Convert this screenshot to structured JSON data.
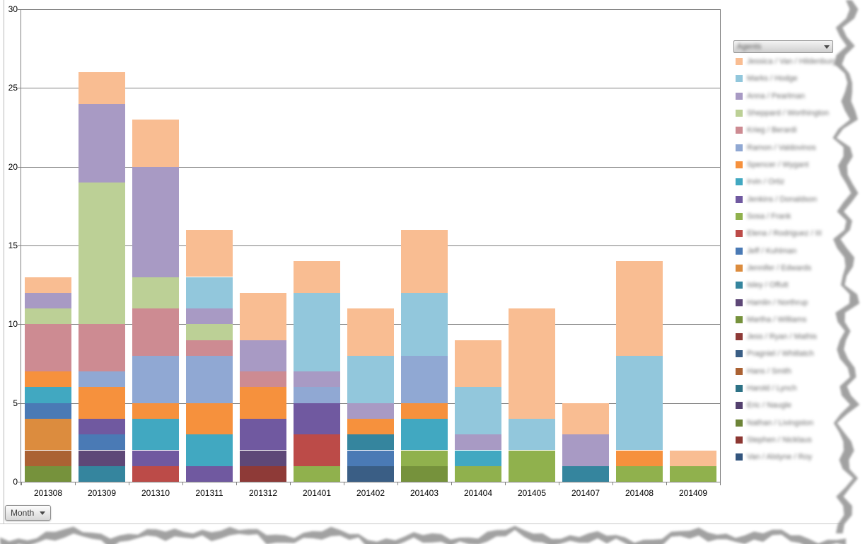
{
  "note": "Legend texts and the legend dropdown caption are blurred/illegible in the source screenshot; their label strings below are shape placeholders only.",
  "y_axis": {
    "ticks": [
      0,
      5,
      10,
      15,
      20,
      25,
      30
    ]
  },
  "controls": {
    "month_button": {
      "label": "Month"
    },
    "legend_dropdown": {
      "label": "Agents",
      "blurred": true
    }
  },
  "chart_data": {
    "type": "bar",
    "stacked": true,
    "title": "",
    "xlabel": "",
    "ylabel": "",
    "ylim": [
      0,
      30
    ],
    "grid": true,
    "gridline_step": 5,
    "legend_position": "right",
    "categories": [
      "201308",
      "201309",
      "201310",
      "201311",
      "201312",
      "201401",
      "201402",
      "201403",
      "201404",
      "201405",
      "201407",
      "201408",
      "201409"
    ],
    "totals": [
      13,
      26,
      23,
      16,
      12,
      14,
      11,
      16,
      9,
      11,
      5,
      14,
      2
    ],
    "palette": {
      "peach": "#F9BD92",
      "ltcyan": "#92C7DC",
      "lavender": "#A89AC4",
      "ltgreen": "#BCD096",
      "salmon": "#CD8B92",
      "periwinkle": "#90A8D3",
      "orange": "#F6913D",
      "teal": "#41A8C1",
      "purple": "#7059A0",
      "green": "#90B14D",
      "red": "#BC4B48",
      "blue": "#4A7AB5",
      "dkorange": "#DC8C3E",
      "dkteal": "#35859E",
      "dkpurple": "#5E4877",
      "olive": "#76923C",
      "dkred": "#8E3A37",
      "dkblue": "#3A5E85",
      "brown": "#AB6233",
      "tealdark2": "#2D7286",
      "purpledark2": "#53406E",
      "olivedark2": "#6D8438",
      "reddark2": "#8C3732",
      "bluedark2": "#33557E"
    },
    "bars": [
      {
        "category": "201308",
        "segments": [
          {
            "c": "olive",
            "v": 1
          },
          {
            "c": "brown",
            "v": 1
          },
          {
            "c": "dkorange",
            "v": 2
          },
          {
            "c": "blue",
            "v": 1
          },
          {
            "c": "teal",
            "v": 1
          },
          {
            "c": "orange",
            "v": 1
          },
          {
            "c": "salmon",
            "v": 3
          },
          {
            "c": "ltgreen",
            "v": 1
          },
          {
            "c": "lavender",
            "v": 1
          },
          {
            "c": "peach",
            "v": 1
          }
        ]
      },
      {
        "category": "201309",
        "segments": [
          {
            "c": "dkteal",
            "v": 1
          },
          {
            "c": "dkpurple",
            "v": 1
          },
          {
            "c": "blue",
            "v": 1
          },
          {
            "c": "purple",
            "v": 1
          },
          {
            "c": "orange",
            "v": 2
          },
          {
            "c": "periwinkle",
            "v": 1
          },
          {
            "c": "salmon",
            "v": 3
          },
          {
            "c": "ltgreen",
            "v": 9
          },
          {
            "c": "lavender",
            "v": 5
          },
          {
            "c": "peach",
            "v": 2
          }
        ]
      },
      {
        "category": "201310",
        "segments": [
          {
            "c": "red",
            "v": 1
          },
          {
            "c": "purple",
            "v": 1
          },
          {
            "c": "teal",
            "v": 2
          },
          {
            "c": "orange",
            "v": 1
          },
          {
            "c": "periwinkle",
            "v": 3
          },
          {
            "c": "salmon",
            "v": 3
          },
          {
            "c": "ltgreen",
            "v": 2
          },
          {
            "c": "lavender",
            "v": 7
          },
          {
            "c": "peach",
            "v": 3
          }
        ]
      },
      {
        "category": "201311",
        "segments": [
          {
            "c": "purple",
            "v": 1
          },
          {
            "c": "teal",
            "v": 2
          },
          {
            "c": "orange",
            "v": 2
          },
          {
            "c": "periwinkle",
            "v": 3
          },
          {
            "c": "salmon",
            "v": 1
          },
          {
            "c": "ltgreen",
            "v": 1
          },
          {
            "c": "lavender",
            "v": 1
          },
          {
            "c": "ltcyan",
            "v": 2
          },
          {
            "c": "peach",
            "v": 3
          }
        ]
      },
      {
        "category": "201312",
        "segments": [
          {
            "c": "dkred",
            "v": 1
          },
          {
            "c": "dkpurple",
            "v": 1
          },
          {
            "c": "purple",
            "v": 2
          },
          {
            "c": "orange",
            "v": 2
          },
          {
            "c": "salmon",
            "v": 1
          },
          {
            "c": "lavender",
            "v": 2
          },
          {
            "c": "peach",
            "v": 3
          }
        ]
      },
      {
        "category": "201401",
        "segments": [
          {
            "c": "green",
            "v": 1
          },
          {
            "c": "red",
            "v": 2
          },
          {
            "c": "purple",
            "v": 2
          },
          {
            "c": "periwinkle",
            "v": 1
          },
          {
            "c": "lavender",
            "v": 1
          },
          {
            "c": "ltcyan",
            "v": 5
          },
          {
            "c": "peach",
            "v": 2
          }
        ]
      },
      {
        "category": "201402",
        "segments": [
          {
            "c": "dkblue",
            "v": 1
          },
          {
            "c": "blue",
            "v": 1
          },
          {
            "c": "dkteal",
            "v": 1
          },
          {
            "c": "orange",
            "v": 1
          },
          {
            "c": "lavender",
            "v": 1
          },
          {
            "c": "ltcyan",
            "v": 3
          },
          {
            "c": "peach",
            "v": 3
          }
        ]
      },
      {
        "category": "201403",
        "segments": [
          {
            "c": "olive",
            "v": 1
          },
          {
            "c": "green",
            "v": 1
          },
          {
            "c": "teal",
            "v": 2
          },
          {
            "c": "orange",
            "v": 1
          },
          {
            "c": "periwinkle",
            "v": 3
          },
          {
            "c": "ltcyan",
            "v": 4
          },
          {
            "c": "peach",
            "v": 4
          }
        ]
      },
      {
        "category": "201404",
        "segments": [
          {
            "c": "green",
            "v": 1
          },
          {
            "c": "teal",
            "v": 1
          },
          {
            "c": "lavender",
            "v": 1
          },
          {
            "c": "ltcyan",
            "v": 3
          },
          {
            "c": "peach",
            "v": 3
          }
        ]
      },
      {
        "category": "201405",
        "segments": [
          {
            "c": "green",
            "v": 2
          },
          {
            "c": "ltcyan",
            "v": 2
          },
          {
            "c": "peach",
            "v": 7
          }
        ]
      },
      {
        "category": "201407",
        "segments": [
          {
            "c": "dkteal",
            "v": 1
          },
          {
            "c": "lavender",
            "v": 2
          },
          {
            "c": "peach",
            "v": 2
          }
        ]
      },
      {
        "category": "201408",
        "segments": [
          {
            "c": "green",
            "v": 1
          },
          {
            "c": "orange",
            "v": 1
          },
          {
            "c": "ltcyan",
            "v": 6
          },
          {
            "c": "peach",
            "v": 6
          }
        ]
      },
      {
        "category": "201409",
        "segments": [
          {
            "c": "green",
            "v": 1
          },
          {
            "c": "peach",
            "v": 1
          }
        ]
      }
    ]
  },
  "legend": {
    "blurred": true,
    "items": [
      {
        "label": "Jessica / Van / Hildenburg",
        "color": "#F9BD92"
      },
      {
        "label": "Marks / Hodge",
        "color": "#92C7DC"
      },
      {
        "label": "Anna / Pearlman",
        "color": "#A89AC4"
      },
      {
        "label": "Sheppard / Worthington",
        "color": "#BCD096"
      },
      {
        "label": "Krieg / Berardi",
        "color": "#CD8B92"
      },
      {
        "label": "Ramon / Valdovinos",
        "color": "#90A8D3"
      },
      {
        "label": "Spencer / Wygant",
        "color": "#F6913D"
      },
      {
        "label": "Irvin / Ortiz",
        "color": "#41A8C1"
      },
      {
        "label": "Jenkins / Donaldson",
        "color": "#7059A0"
      },
      {
        "label": "Sosa / Frank",
        "color": "#90B14D"
      },
      {
        "label": "Elena / Rodriguez / III",
        "color": "#BC4B48"
      },
      {
        "label": "Jeff / Kuhlman",
        "color": "#4A7AB5"
      },
      {
        "label": "Jennifer / Edwards",
        "color": "#DC8C3E"
      },
      {
        "label": "Isley / Offutt",
        "color": "#35859E"
      },
      {
        "label": "Hamlin / Northrup",
        "color": "#5E4877"
      },
      {
        "label": "Martha / Williams",
        "color": "#76923C"
      },
      {
        "label": "Jess / Ryan / Mathis",
        "color": "#8E3A37"
      },
      {
        "label": "Pragniel / Whitlatch",
        "color": "#3A5E85"
      },
      {
        "label": "Hans / Smith",
        "color": "#AB6233"
      },
      {
        "label": "Harold / Lynch",
        "color": "#2D7286"
      },
      {
        "label": "Eric / Naugle",
        "color": "#53406E"
      },
      {
        "label": "Nathan / Livingston",
        "color": "#6D8438"
      },
      {
        "label": "Stephen / Nicklaus",
        "color": "#8C3732"
      },
      {
        "label": "Van / Alstyne / Roy",
        "color": "#33557E"
      }
    ]
  }
}
